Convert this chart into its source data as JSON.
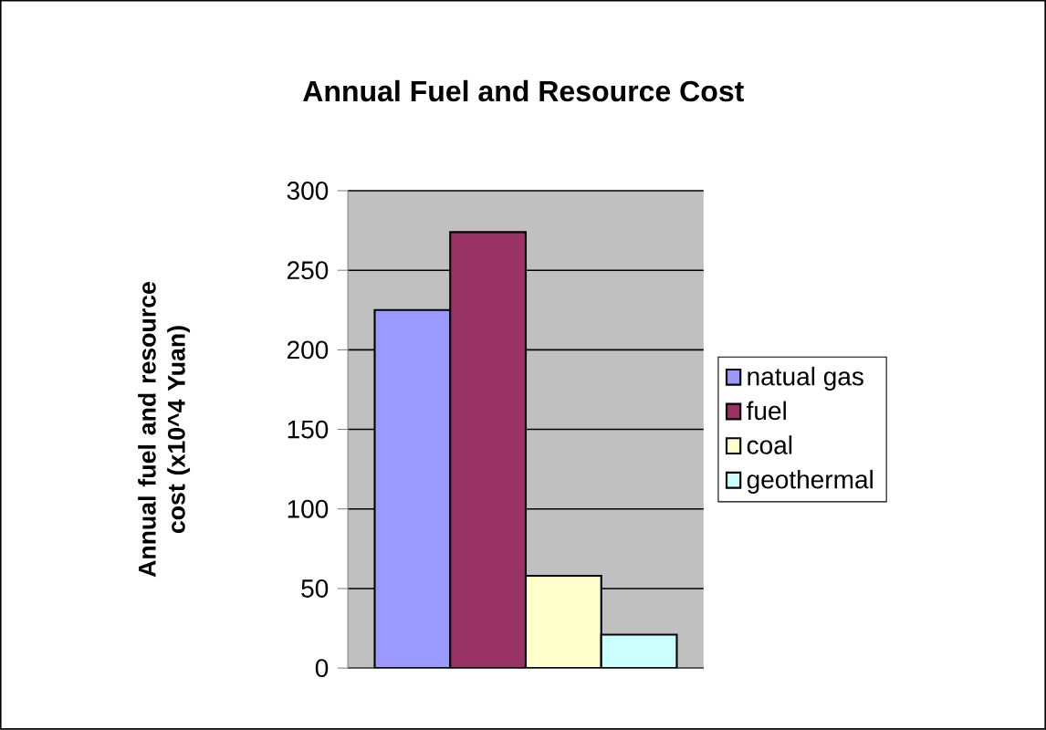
{
  "chart_data": {
    "type": "bar",
    "title": "Annual Fuel and Resource Cost",
    "ylabel": "Annual fuel and resource cost (x10^4 Yuan)",
    "categories": [
      null
    ],
    "series": [
      {
        "name": "natual gas",
        "color": "#9999ff",
        "values": [
          225
        ]
      },
      {
        "name": "fuel",
        "color": "#993366",
        "values": [
          274
        ]
      },
      {
        "name": "coal",
        "color": "#ffffcc",
        "values": [
          58
        ]
      },
      {
        "name": "geothermal",
        "color": "#ccffff",
        "values": [
          21
        ]
      }
    ],
    "ylim": [
      0,
      300
    ],
    "yticks": [
      0,
      50,
      100,
      150,
      200,
      250,
      300
    ],
    "grid": "y",
    "legend": "right"
  }
}
